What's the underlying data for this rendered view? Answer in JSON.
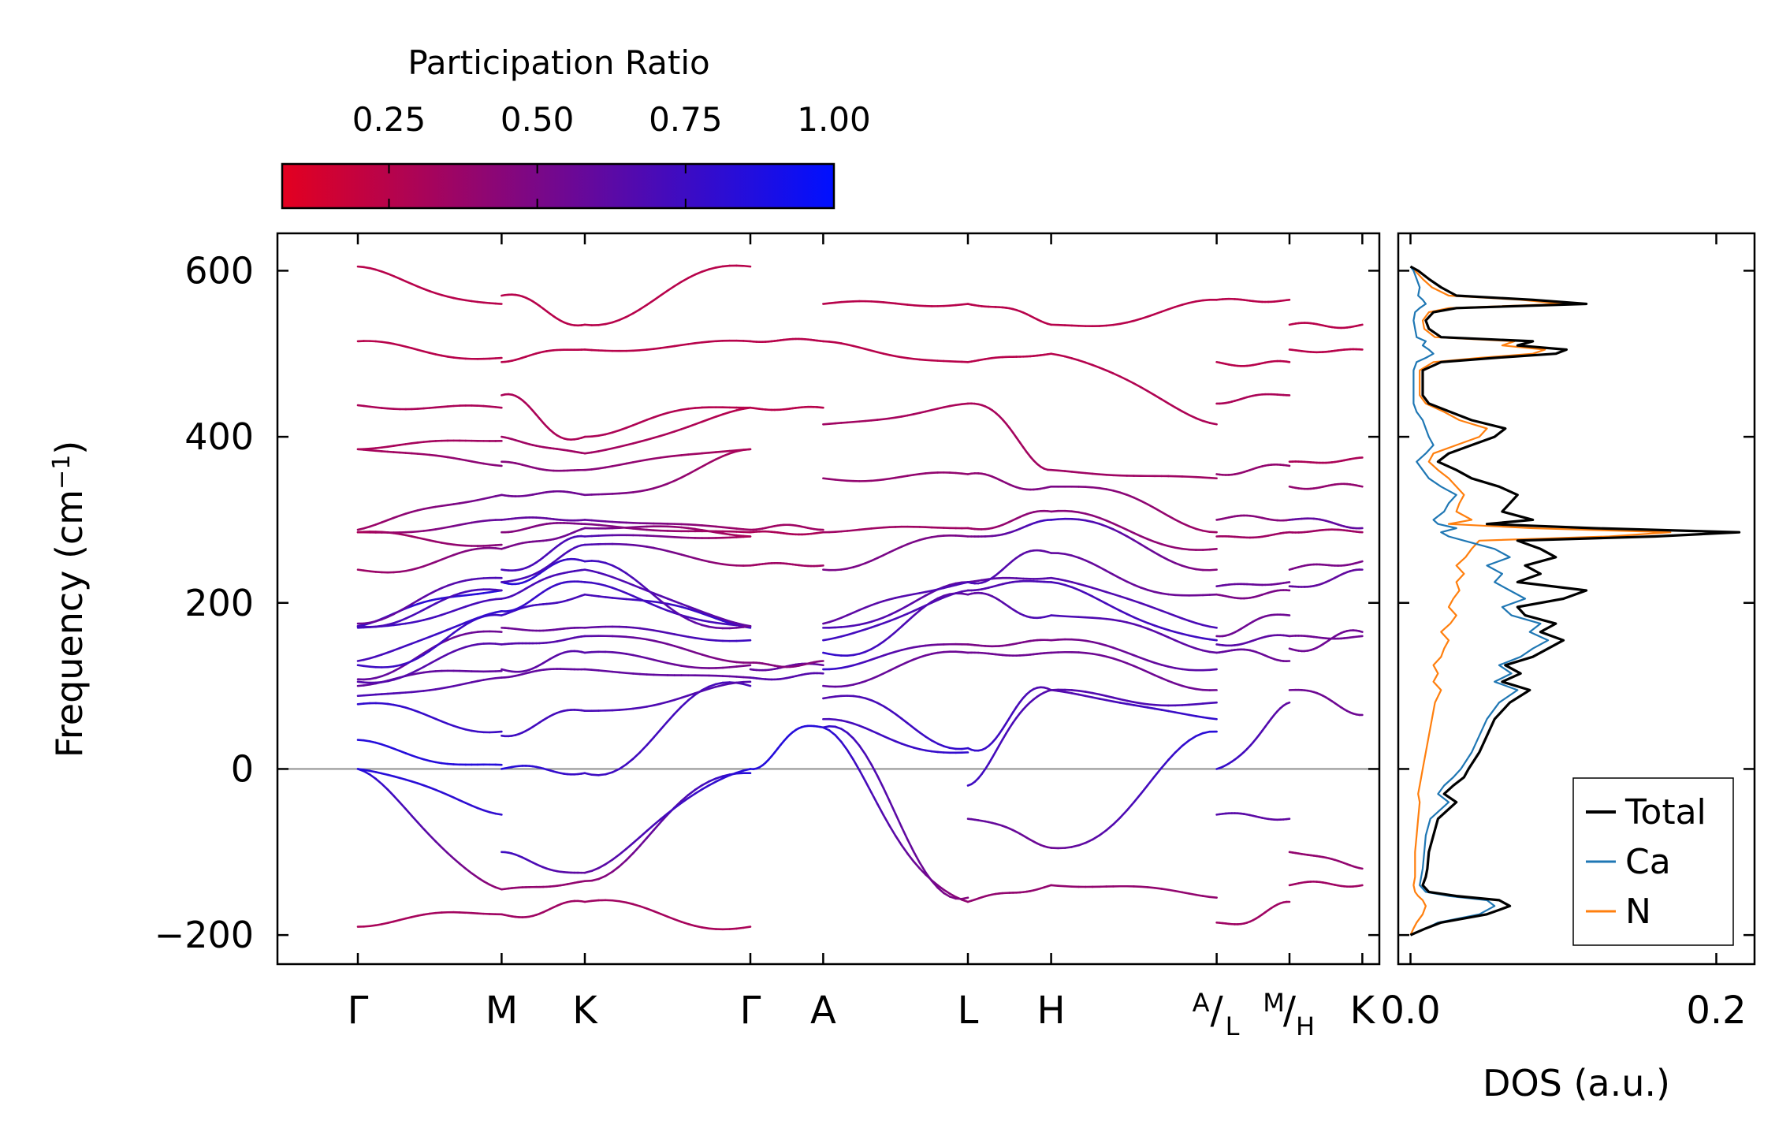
{
  "colorbar": {
    "title": "Participation Ratio",
    "range": [
      0.07,
      1.0
    ],
    "ticks": [
      0.25,
      0.5,
      0.75,
      1.0
    ],
    "tick_labels": [
      "0.25",
      "0.50",
      "0.75",
      "1.00"
    ],
    "color_low": "#e30020",
    "color_high": "#0010ff"
  },
  "band_panel": {
    "ylabel": "Frequency (cm",
    "ylabel_sup": "−1",
    "ylabel_end": ")",
    "ylim": [
      -235,
      645
    ],
    "yticks": [
      -200,
      0,
      200,
      400,
      600
    ],
    "ytick_labels": [
      "−200",
      "0",
      "200",
      "400",
      "600"
    ],
    "xlim": [
      -0.085,
      1.08
    ],
    "kpoints": [
      {
        "x": 0.0,
        "label": "Γ",
        "type": "plain"
      },
      {
        "x": 0.152,
        "label": "M",
        "type": "plain"
      },
      {
        "x": 0.24,
        "label": "K",
        "type": "plain"
      },
      {
        "x": 0.415,
        "label": "Γ",
        "type": "plain"
      },
      {
        "x": 0.492,
        "label": "A",
        "type": "plain"
      },
      {
        "x": 0.645,
        "label": "L",
        "type": "plain"
      },
      {
        "x": 0.733,
        "label": "H",
        "type": "plain"
      },
      {
        "x": 0.908,
        "sup": "A",
        "sep": "/",
        "sub": "L",
        "type": "split"
      },
      {
        "x": 0.985,
        "sup": "M",
        "sep": "/",
        "sub": "H",
        "type": "split"
      },
      {
        "x": 1.062,
        "label": "K",
        "type": "plain"
      }
    ],
    "zero_line_color": "#888888"
  },
  "dos_panel": {
    "xlabel": "DOS (a.u.)",
    "xlim": [
      -0.008,
      0.225
    ],
    "xticks": [
      0.0,
      0.2
    ],
    "xtick_labels": [
      "0.0",
      "0.2"
    ],
    "legend": [
      {
        "name": "Total",
        "color": "#000000"
      },
      {
        "name": "Ca",
        "color": "#1f77b4"
      },
      {
        "name": "N",
        "color": "#ff7f0e"
      }
    ],
    "legend_position": "lower-right"
  },
  "chart_data": {
    "type": "line",
    "title": "",
    "dos": {
      "frequency": [
        -200,
        -192,
        -185,
        -175,
        -165,
        -158,
        -153,
        -148,
        -140,
        -130,
        -120,
        -100,
        -80,
        -60,
        -40,
        -30,
        -20,
        -10,
        0,
        20,
        40,
        60,
        80,
        95,
        105,
        115,
        125,
        135,
        145,
        155,
        165,
        175,
        185,
        195,
        205,
        215,
        225,
        235,
        245,
        255,
        265,
        275,
        280,
        285,
        290,
        295,
        300,
        310,
        320,
        330,
        340,
        350,
        360,
        370,
        380,
        390,
        400,
        410,
        420,
        430,
        440,
        450,
        460,
        470,
        480,
        490,
        495,
        500,
        505,
        510,
        515,
        520,
        530,
        540,
        550,
        555,
        560,
        565,
        570,
        580,
        590,
        600,
        605
      ],
      "total": [
        0.0,
        0.01,
        0.02,
        0.05,
        0.065,
        0.058,
        0.03,
        0.012,
        0.008,
        0.01,
        0.011,
        0.012,
        0.015,
        0.018,
        0.03,
        0.022,
        0.028,
        0.035,
        0.038,
        0.045,
        0.05,
        0.055,
        0.065,
        0.078,
        0.06,
        0.072,
        0.062,
        0.08,
        0.09,
        0.1,
        0.085,
        0.095,
        0.075,
        0.07,
        0.1,
        0.115,
        0.07,
        0.085,
        0.075,
        0.095,
        0.085,
        0.07,
        0.16,
        0.215,
        0.12,
        0.05,
        0.08,
        0.06,
        0.065,
        0.07,
        0.058,
        0.04,
        0.03,
        0.018,
        0.025,
        0.04,
        0.055,
        0.062,
        0.04,
        0.026,
        0.012,
        0.008,
        0.008,
        0.008,
        0.008,
        0.02,
        0.055,
        0.095,
        0.102,
        0.07,
        0.08,
        0.02,
        0.012,
        0.01,
        0.015,
        0.03,
        0.115,
        0.08,
        0.03,
        0.02,
        0.012,
        0.005,
        0.0
      ],
      "ca": [
        0.0,
        0.01,
        0.018,
        0.045,
        0.055,
        0.05,
        0.025,
        0.01,
        0.006,
        0.007,
        0.008,
        0.009,
        0.01,
        0.013,
        0.025,
        0.018,
        0.022,
        0.028,
        0.033,
        0.04,
        0.045,
        0.05,
        0.058,
        0.07,
        0.055,
        0.066,
        0.058,
        0.072,
        0.08,
        0.09,
        0.078,
        0.085,
        0.066,
        0.06,
        0.075,
        0.065,
        0.055,
        0.06,
        0.05,
        0.065,
        0.055,
        0.035,
        0.025,
        0.02,
        0.03,
        0.018,
        0.015,
        0.022,
        0.025,
        0.03,
        0.02,
        0.012,
        0.008,
        0.004,
        0.01,
        0.015,
        0.012,
        0.01,
        0.008,
        0.004,
        0.002,
        0.002,
        0.002,
        0.002,
        0.002,
        0.004,
        0.01,
        0.015,
        0.012,
        0.008,
        0.01,
        0.004,
        0.003,
        0.002,
        0.003,
        0.006,
        0.01,
        0.008,
        0.005,
        0.006,
        0.004,
        0.002,
        0.0
      ],
      "n": [
        0.0,
        0.002,
        0.004,
        0.008,
        0.01,
        0.008,
        0.005,
        0.003,
        0.002,
        0.003,
        0.003,
        0.003,
        0.004,
        0.005,
        0.006,
        0.005,
        0.006,
        0.007,
        0.008,
        0.01,
        0.012,
        0.014,
        0.016,
        0.02,
        0.015,
        0.018,
        0.015,
        0.02,
        0.022,
        0.025,
        0.02,
        0.026,
        0.03,
        0.025,
        0.028,
        0.032,
        0.03,
        0.035,
        0.03,
        0.036,
        0.04,
        0.045,
        0.13,
        0.17,
        0.08,
        0.025,
        0.04,
        0.03,
        0.032,
        0.035,
        0.03,
        0.025,
        0.018,
        0.012,
        0.015,
        0.03,
        0.045,
        0.05,
        0.032,
        0.022,
        0.01,
        0.006,
        0.006,
        0.006,
        0.006,
        0.015,
        0.045,
        0.08,
        0.088,
        0.06,
        0.068,
        0.016,
        0.009,
        0.008,
        0.012,
        0.025,
        0.1,
        0.072,
        0.025,
        0.014,
        0.008,
        0.003,
        0.0
      ]
    },
    "bands": {
      "n_bands": 24,
      "segments": [
        {
          "x0": 0.0,
          "x1": 0.152,
          "freqs0": [
            -190,
            0,
            0,
            35,
            78,
            88,
            100,
            105,
            108,
            125,
            130,
            170,
            172,
            172,
            175,
            240,
            285,
            285,
            288,
            385,
            385,
            438,
            515,
            605
          ],
          "freqs1": [
            -175,
            -145,
            -55,
            5,
            45,
            110,
            118,
            150,
            165,
            185,
            190,
            205,
            215,
            215,
            230,
            265,
            270,
            300,
            330,
            365,
            395,
            435,
            495,
            560
          ],
          "pr0": [
            0.3,
            0.85,
            0.85,
            0.85,
            0.8,
            0.7,
            0.6,
            0.65,
            0.6,
            0.75,
            0.7,
            0.75,
            0.8,
            0.7,
            0.55,
            0.35,
            0.3,
            0.3,
            0.35,
            0.3,
            0.3,
            0.3,
            0.25,
            0.25
          ],
          "pr1": [
            0.35,
            0.4,
            0.8,
            0.85,
            0.75,
            0.6,
            0.6,
            0.65,
            0.55,
            0.75,
            0.8,
            0.7,
            0.85,
            0.7,
            0.7,
            0.5,
            0.45,
            0.6,
            0.55,
            0.45,
            0.35,
            0.3,
            0.25,
            0.25
          ]
        },
        {
          "x0": 0.152,
          "x1": 0.24,
          "freqs0": [
            -175,
            -145,
            -100,
            0,
            40,
            110,
            120,
            150,
            170,
            185,
            190,
            205,
            225,
            225,
            240,
            265,
            285,
            300,
            330,
            370,
            400,
            450,
            490,
            570
          ],
          "freqs1": [
            -160,
            -135,
            -125,
            -5,
            70,
            120,
            140,
            160,
            170,
            210,
            225,
            240,
            250,
            270,
            280,
            290,
            295,
            300,
            330,
            360,
            380,
            400,
            505,
            535
          ],
          "pr0": [
            0.35,
            0.4,
            0.75,
            0.85,
            0.75,
            0.6,
            0.6,
            0.65,
            0.55,
            0.75,
            0.8,
            0.7,
            0.85,
            0.7,
            0.7,
            0.5,
            0.45,
            0.6,
            0.55,
            0.45,
            0.35,
            0.3,
            0.25,
            0.25
          ],
          "pr1": [
            0.35,
            0.4,
            0.6,
            0.75,
            0.7,
            0.6,
            0.65,
            0.65,
            0.6,
            0.7,
            0.75,
            0.7,
            0.75,
            0.7,
            0.7,
            0.55,
            0.5,
            0.6,
            0.55,
            0.45,
            0.35,
            0.3,
            0.25,
            0.25
          ]
        },
        {
          "x0": 0.24,
          "x1": 0.415,
          "freqs0": [
            -160,
            -135,
            -125,
            -5,
            70,
            120,
            140,
            160,
            170,
            210,
            225,
            240,
            250,
            270,
            280,
            290,
            295,
            300,
            330,
            360,
            380,
            400,
            505,
            535
          ],
          "freqs1": [
            -190,
            -5,
            0,
            100,
            105,
            110,
            125,
            128,
            155,
            170,
            172,
            172,
            172,
            245,
            280,
            280,
            285,
            288,
            385,
            385,
            435,
            435,
            515,
            605
          ],
          "pr0": [
            0.35,
            0.4,
            0.6,
            0.75,
            0.7,
            0.6,
            0.65,
            0.65,
            0.6,
            0.7,
            0.75,
            0.7,
            0.75,
            0.7,
            0.7,
            0.55,
            0.5,
            0.6,
            0.55,
            0.45,
            0.35,
            0.3,
            0.25,
            0.25
          ],
          "pr1": [
            0.3,
            0.85,
            0.85,
            0.7,
            0.65,
            0.6,
            0.5,
            0.45,
            0.75,
            0.8,
            0.7,
            0.6,
            0.55,
            0.35,
            0.3,
            0.3,
            0.3,
            0.35,
            0.3,
            0.3,
            0.25,
            0.25,
            0.25,
            0.25
          ]
        },
        {
          "x0": 0.415,
          "x1": 0.492,
          "freqs0": [
            0,
            110,
            120,
            128,
            245,
            285,
            288,
            435,
            515
          ],
          "freqs1": [
            50,
            115,
            125,
            130,
            245,
            285,
            288,
            435,
            515
          ],
          "pr0": [
            0.85,
            0.65,
            0.6,
            0.45,
            0.35,
            0.3,
            0.35,
            0.25,
            0.25
          ],
          "pr1": [
            0.85,
            0.65,
            0.6,
            0.45,
            0.35,
            0.3,
            0.35,
            0.25,
            0.25
          ]
        },
        {
          "x0": 0.492,
          "x1": 0.645,
          "freqs0": [
            50,
            50,
            60,
            85,
            100,
            120,
            140,
            155,
            170,
            175,
            240,
            285,
            350,
            415,
            515,
            560
          ],
          "freqs1": [
            -160,
            -155,
            20,
            25,
            140,
            150,
            210,
            215,
            225,
            225,
            280,
            290,
            355,
            440,
            490,
            560
          ],
          "pr0": [
            0.85,
            0.8,
            0.7,
            0.65,
            0.6,
            0.8,
            0.8,
            0.75,
            0.7,
            0.6,
            0.5,
            0.35,
            0.4,
            0.35,
            0.25,
            0.25
          ],
          "pr1": [
            0.4,
            0.45,
            0.8,
            0.8,
            0.55,
            0.5,
            0.6,
            0.65,
            0.6,
            0.7,
            0.5,
            0.35,
            0.4,
            0.3,
            0.25,
            0.25
          ]
        },
        {
          "x0": 0.645,
          "x1": 0.733,
          "freqs0": [
            -160,
            -60,
            -20,
            25,
            140,
            150,
            210,
            215,
            225,
            225,
            280,
            290,
            355,
            440,
            490,
            560
          ],
          "freqs1": [
            -140,
            -95,
            95,
            95,
            140,
            155,
            185,
            225,
            230,
            260,
            300,
            310,
            340,
            360,
            500,
            535
          ],
          "pr0": [
            0.4,
            0.6,
            0.75,
            0.8,
            0.55,
            0.5,
            0.6,
            0.65,
            0.6,
            0.7,
            0.5,
            0.35,
            0.4,
            0.3,
            0.25,
            0.25
          ],
          "pr1": [
            0.4,
            0.55,
            0.65,
            0.65,
            0.55,
            0.5,
            0.7,
            0.7,
            0.65,
            0.6,
            0.75,
            0.45,
            0.5,
            0.35,
            0.25,
            0.25
          ]
        },
        {
          "x0": 0.733,
          "x1": 0.908,
          "freqs0": [
            -140,
            -95,
            95,
            95,
            140,
            155,
            185,
            225,
            230,
            260,
            300,
            310,
            340,
            360,
            500,
            535
          ],
          "freqs1": [
            -155,
            45,
            60,
            80,
            95,
            120,
            140,
            155,
            170,
            210,
            240,
            265,
            285,
            350,
            415,
            565
          ],
          "pr0": [
            0.4,
            0.55,
            0.65,
            0.65,
            0.55,
            0.5,
            0.7,
            0.7,
            0.65,
            0.6,
            0.75,
            0.45,
            0.5,
            0.35,
            0.25,
            0.25
          ],
          "pr1": [
            0.4,
            0.85,
            0.8,
            0.7,
            0.55,
            0.65,
            0.6,
            0.75,
            0.7,
            0.55,
            0.45,
            0.4,
            0.35,
            0.35,
            0.3,
            0.25
          ]
        },
        {
          "x0": 0.908,
          "x1": 0.985,
          "freqs0": [
            -185,
            -55,
            0,
            140,
            150,
            160,
            210,
            220,
            280,
            300,
            355,
            440,
            490,
            565
          ],
          "freqs1": [
            -160,
            -60,
            80,
            130,
            160,
            185,
            215,
            225,
            285,
            300,
            365,
            450,
            490,
            565
          ],
          "pr0": [
            0.35,
            0.65,
            0.8,
            0.6,
            0.65,
            0.55,
            0.5,
            0.6,
            0.35,
            0.45,
            0.4,
            0.3,
            0.25,
            0.25
          ],
          "pr1": [
            0.35,
            0.6,
            0.6,
            0.55,
            0.6,
            0.55,
            0.5,
            0.55,
            0.35,
            0.45,
            0.4,
            0.3,
            0.25,
            0.25
          ]
        },
        {
          "x0": 0.985,
          "x1": 1.062,
          "freqs0": [
            -140,
            -100,
            95,
            145,
            160,
            220,
            240,
            285,
            300,
            340,
            370,
            505,
            535
          ],
          "freqs1": [
            -140,
            -120,
            65,
            165,
            160,
            240,
            250,
            285,
            290,
            340,
            375,
            505,
            535
          ],
          "pr0": [
            0.35,
            0.4,
            0.55,
            0.55,
            0.55,
            0.6,
            0.5,
            0.35,
            0.6,
            0.4,
            0.3,
            0.25,
            0.25
          ],
          "pr1": [
            0.35,
            0.4,
            0.55,
            0.55,
            0.55,
            0.6,
            0.5,
            0.35,
            0.6,
            0.4,
            0.3,
            0.25,
            0.25
          ]
        }
      ]
    }
  }
}
